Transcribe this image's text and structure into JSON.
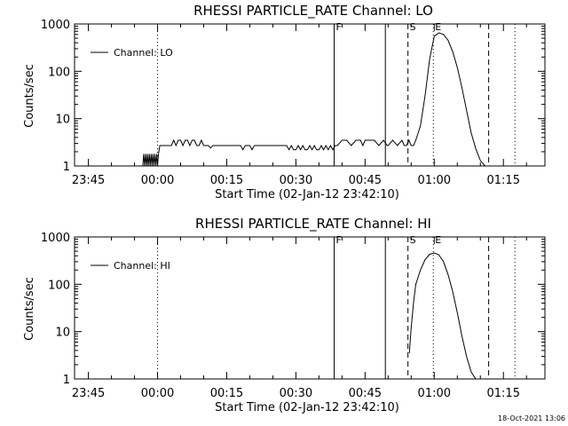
{
  "footer": {
    "timestamp": "18-Oct-2021 13:06"
  },
  "chart_data": [
    {
      "type": "line",
      "title": "RHESSI PARTICLE_RATE Channel: LO",
      "xlabel": "Start Time (02-Jan-12 23:42:10)",
      "ylabel": "Counts/sec",
      "x_unit": "minutes after 00:00 UT (02-Jan-12 / 03-Jan-12)",
      "xlim": [
        -18,
        84
      ],
      "ylim": [
        1,
        1000
      ],
      "yscale": "log",
      "x_ticks": [
        {
          "value": -15,
          "label": "23:45"
        },
        {
          "value": 0,
          "label": "00:00"
        },
        {
          "value": 15,
          "label": "00:15"
        },
        {
          "value": 30,
          "label": "00:30"
        },
        {
          "value": 45,
          "label": "00:45"
        },
        {
          "value": 60,
          "label": "01:00"
        },
        {
          "value": 75,
          "label": "01:15"
        }
      ],
      "y_ticks": [
        {
          "value": 1,
          "label": "1"
        },
        {
          "value": 10,
          "label": "10"
        },
        {
          "value": 100,
          "label": "100"
        },
        {
          "value": 1000,
          "label": "1000"
        }
      ],
      "legend": {
        "position": "top-left",
        "label": "Channel: LO"
      },
      "series": [
        {
          "name": "Channel: LO",
          "x": [
            -3.2,
            -3.0,
            -2.8,
            -2.6,
            -2.4,
            -2.2,
            -2.0,
            -1.8,
            -1.6,
            -1.4,
            -1.2,
            -1.0,
            -0.8,
            -0.6,
            -0.4,
            -0.2,
            0.0,
            0.2,
            0.5,
            1.0,
            2.0,
            3.0,
            3.5,
            4.0,
            4.5,
            5.0,
            5.5,
            6.0,
            6.5,
            7.0,
            7.5,
            8.0,
            8.5,
            9.0,
            9.5,
            10.0,
            11.0,
            11.5,
            12.0,
            13.0,
            14.0,
            15.0,
            16.0,
            17.0,
            18.0,
            18.5,
            19.0,
            20.0,
            20.5,
            21.0,
            22.0,
            23.0,
            24.0,
            25.0,
            26.0,
            27.0,
            28.0,
            28.5,
            29.0,
            29.5,
            30.0,
            30.5,
            31.0,
            31.5,
            32.0,
            32.5,
            33.0,
            33.5,
            34.0,
            34.5,
            35.0,
            35.5,
            36.0,
            36.5,
            37.0,
            37.5,
            38.0,
            38.5,
            39.0,
            40.0,
            41.0,
            42.0,
            43.0,
            44.0,
            44.5,
            45.0,
            46.0,
            47.0,
            48.0,
            49.0,
            49.8,
            50.0,
            51.0,
            52.0,
            53.0,
            53.5,
            54.0,
            54.5,
            55.0,
            55.5,
            56.0,
            57.0,
            58.0,
            59.0,
            60.0,
            61.0,
            62.0,
            63.0,
            64.0,
            65.0,
            66.0,
            67.0,
            68.0,
            69.0,
            70.0,
            71.0,
            72.0
          ],
          "y": [
            1,
            1.8,
            1,
            1.8,
            1,
            1.8,
            1,
            1.8,
            1,
            1.8,
            1,
            1.8,
            1,
            1.8,
            1,
            1.8,
            1,
            1.8,
            2.7,
            2.7,
            2.7,
            2.7,
            3.5,
            2.7,
            3.5,
            3.5,
            2.7,
            3.5,
            3.5,
            2.7,
            3.5,
            3.5,
            2.7,
            2.7,
            3.5,
            2.7,
            2.7,
            2.4,
            2.7,
            2.7,
            2.7,
            2.7,
            2.7,
            2.7,
            2.7,
            2.2,
            2.7,
            2.7,
            2.2,
            2.7,
            2.7,
            2.7,
            2.7,
            2.7,
            2.7,
            2.7,
            2.7,
            2.2,
            2.7,
            2.2,
            2.2,
            2.7,
            2.2,
            2.7,
            2.2,
            2.2,
            2.7,
            2.2,
            2.7,
            2.2,
            2.2,
            2.7,
            2.2,
            2.7,
            2.2,
            2.7,
            2.2,
            2.7,
            2.7,
            3.5,
            3.5,
            2.7,
            3.5,
            3.5,
            2.7,
            3.5,
            3.5,
            3.5,
            2.7,
            3.5,
            2.7,
            2.7,
            3.5,
            2.7,
            3.5,
            2.7,
            2.7,
            3.5,
            2.7,
            2.7,
            3.5,
            7,
            30,
            180,
            550,
            650,
            600,
            450,
            260,
            120,
            45,
            15,
            5,
            2.3,
            1.3,
            1,
            1
          ]
        }
      ],
      "markers": [
        {
          "label": "F",
          "x": 38.3,
          "style": "solid"
        },
        {
          "label": "",
          "x": 49.4,
          "style": "solid"
        },
        {
          "label": "S",
          "x": 54.3,
          "style": "dashed"
        },
        {
          "label": "E",
          "x": 59.8,
          "style": "dotted"
        },
        {
          "label": "",
          "x": 71.8,
          "style": "dashed"
        },
        {
          "label": "",
          "x": 0,
          "style": "dotted"
        },
        {
          "label": "",
          "x": 77.5,
          "style": "dotted"
        }
      ]
    },
    {
      "type": "line",
      "title": "RHESSI PARTICLE_RATE Channel: HI",
      "xlabel": "Start Time (02-Jan-12 23:42:10)",
      "ylabel": "Counts/sec",
      "x_unit": "minutes after 00:00 UT (02-Jan-12 / 03-Jan-12)",
      "xlim": [
        -18,
        84
      ],
      "ylim": [
        1,
        1000
      ],
      "yscale": "log",
      "x_ticks": [
        {
          "value": -15,
          "label": "23:45"
        },
        {
          "value": 0,
          "label": "00:00"
        },
        {
          "value": 15,
          "label": "00:15"
        },
        {
          "value": 30,
          "label": "00:30"
        },
        {
          "value": 45,
          "label": "00:45"
        },
        {
          "value": 60,
          "label": "01:00"
        },
        {
          "value": 75,
          "label": "01:15"
        }
      ],
      "y_ticks": [
        {
          "value": 1,
          "label": "1"
        },
        {
          "value": 10,
          "label": "10"
        },
        {
          "value": 100,
          "label": "100"
        },
        {
          "value": 1000,
          "label": "1000"
        }
      ],
      "legend": {
        "position": "top-left",
        "label": "Channel: HI"
      },
      "series": [
        {
          "name": "Channel: HI",
          "x": [
            54.6,
            55.0,
            55.5,
            56.0,
            57.0,
            58.0,
            59.0,
            60.0,
            61.0,
            62.0,
            63.0,
            64.0,
            65.0,
            66.0,
            67.0,
            68.0,
            69.0,
            70.0
          ],
          "y": [
            3.5,
            12,
            40,
            100,
            200,
            330,
            430,
            460,
            420,
            300,
            160,
            70,
            25,
            8,
            3,
            1.4,
            1,
            1
          ]
        }
      ],
      "markers": [
        {
          "label": "F",
          "x": 38.3,
          "style": "solid"
        },
        {
          "label": "",
          "x": 49.4,
          "style": "solid"
        },
        {
          "label": "S",
          "x": 54.3,
          "style": "dashed"
        },
        {
          "label": "E",
          "x": 59.8,
          "style": "dotted"
        },
        {
          "label": "",
          "x": 71.8,
          "style": "dashed"
        },
        {
          "label": "",
          "x": 0,
          "style": "dotted"
        },
        {
          "label": "",
          "x": 77.5,
          "style": "dotted"
        }
      ]
    }
  ]
}
